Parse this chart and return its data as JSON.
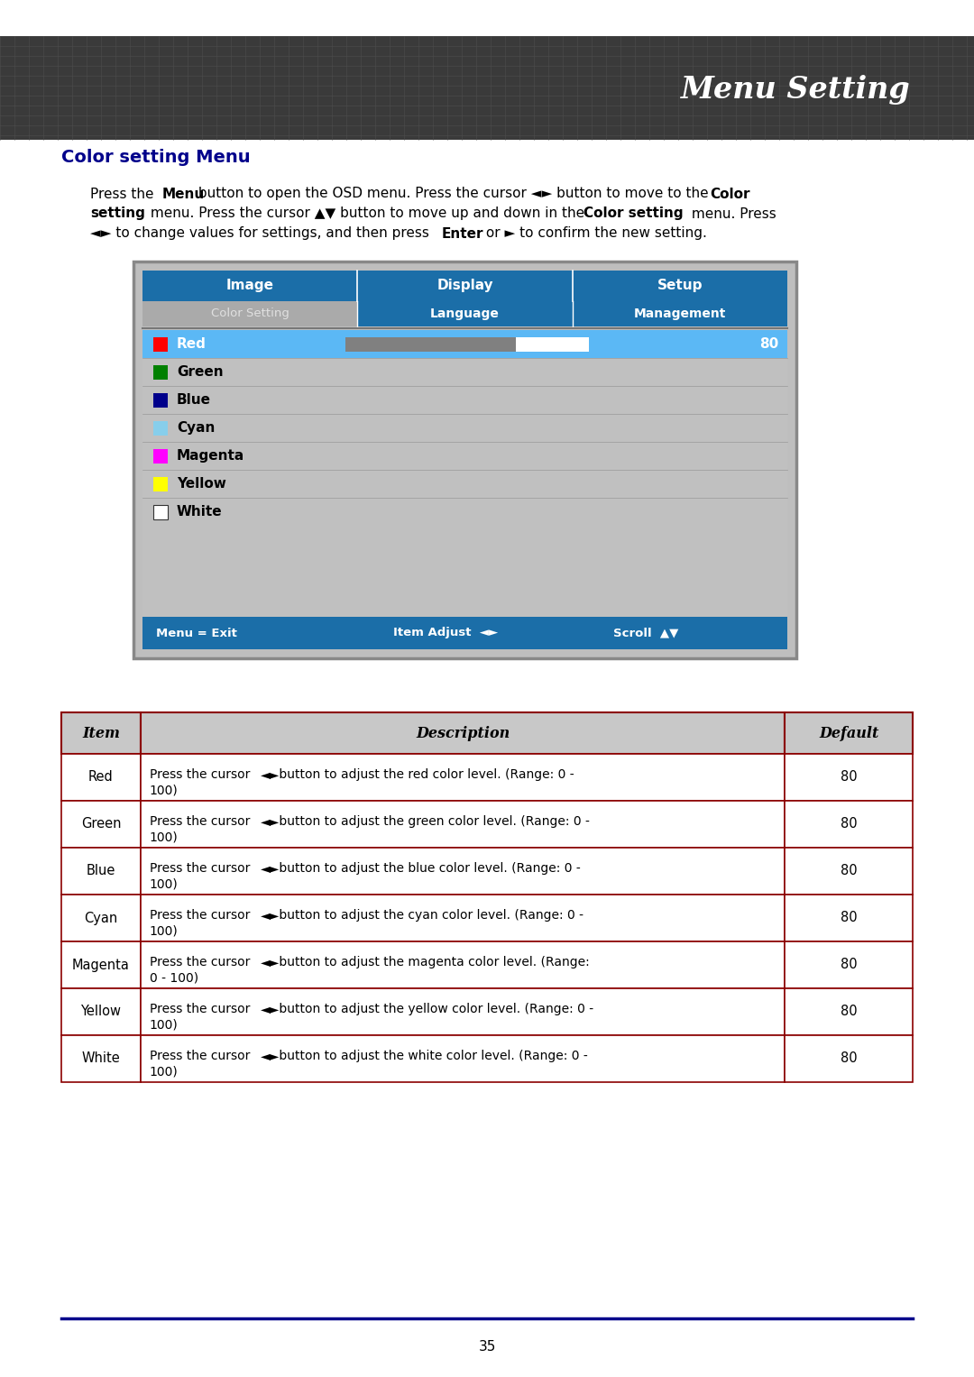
{
  "title_banner_text": "Menu Setting",
  "page_title": "Color setting Menu",
  "osd_tabs": [
    "Image",
    "Display",
    "Setup"
  ],
  "osd_subtabs_left": "Color Setting",
  "osd_subtabs_right": [
    "Language",
    "Management"
  ],
  "osd_items": [
    {
      "name": "Red",
      "color": "#FF0000",
      "selected": true
    },
    {
      "name": "Green",
      "color": "#008000",
      "selected": false
    },
    {
      "name": "Blue",
      "color": "#00008B",
      "selected": false
    },
    {
      "name": "Cyan",
      "color": "#87CEEB",
      "selected": false
    },
    {
      "name": "Magenta",
      "color": "#FF00FF",
      "selected": false
    },
    {
      "name": "Yellow",
      "color": "#FFFF00",
      "selected": false
    },
    {
      "name": "White",
      "color": "#FFFFFF",
      "selected": false
    }
  ],
  "osd_selected_value": "80",
  "osd_bg": "#C0C0C0",
  "osd_tab_bg": "#1B6EA8",
  "osd_selected_row_bg": "#5BB8F5",
  "osd_bottom_bar_bg": "#1B6EA8",
  "table_header": [
    "Item",
    "Description",
    "Default"
  ],
  "table_header_bg": "#C0C0C0",
  "table_header_text_color": "#000000",
  "table_border_color": "#8B0000",
  "table_rows": [
    {
      "item": "Red",
      "desc_line1": "Press the cursor ◄► button to adjust the red color level. (Range: 0 -",
      "desc_line2": "100)",
      "default": "80"
    },
    {
      "item": "Green",
      "desc_line1": "Press the cursor ◄► button to adjust the green color level. (Range: 0 -",
      "desc_line2": "100)",
      "default": "80"
    },
    {
      "item": "Blue",
      "desc_line1": "Press the cursor ◄► button to adjust the blue color level. (Range: 0 -",
      "desc_line2": "100)",
      "default": "80"
    },
    {
      "item": "Cyan",
      "desc_line1": "Press the cursor ◄► button to adjust the cyan color level. (Range: 0 -",
      "desc_line2": "100)",
      "default": "80"
    },
    {
      "item": "Magenta",
      "desc_line1": "Press the cursor ◄► button to adjust the magenta color level. (Range:",
      "desc_line2": "0 - 100)",
      "default": "80"
    },
    {
      "item": "Yellow",
      "desc_line1": "Press the cursor ◄► button to adjust the yellow color level. (Range: 0 -",
      "desc_line2": "100)",
      "default": "80"
    },
    {
      "item": "White",
      "desc_line1": "Press the cursor ◄► button to adjust the white color level. (Range: 0 -",
      "desc_line2": "100)",
      "default": "80"
    }
  ],
  "page_number": "35",
  "bottom_line_color": "#00008B",
  "page_title_color": "#00008B",
  "background_color": "#FFFFFF"
}
